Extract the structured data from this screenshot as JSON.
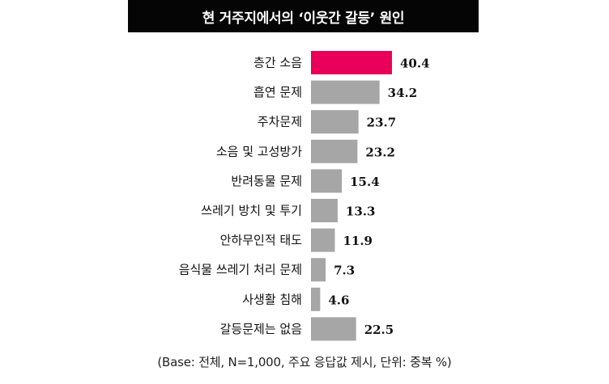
{
  "chart_data": {
    "type": "bar",
    "orientation": "horizontal",
    "title": "현 거주지에서의 ‘이웃간 갈등’ 원인",
    "categories": [
      "층간 소음",
      "흡연 문제",
      "주차문제",
      "소음 및 고성방가",
      "반려동물 문제",
      "쓰레기 방치 및 투기",
      "안하무인적 태도",
      "음식물 쓰레기 처리 문제",
      "사생활 침해",
      "갈등문제는 없음"
    ],
    "values": [
      40.4,
      34.2,
      23.7,
      23.2,
      15.4,
      13.3,
      11.9,
      7.3,
      4.6,
      22.5
    ],
    "value_labels": [
      "40.4",
      "34.2",
      "23.7",
      "23.2",
      "15.4",
      "13.3",
      "11.9",
      "7.3",
      "4.6",
      "22.5"
    ],
    "highlight_index": 0,
    "colors": {
      "highlight": "#E8005A",
      "default": "#A6A6A6"
    },
    "xlim": [
      0,
      40.4
    ],
    "grid": false,
    "legend": "none",
    "footnote": "(Base: 전체, N=1,000, 주요 응답값 제시, 단위: 중복 %)"
  }
}
